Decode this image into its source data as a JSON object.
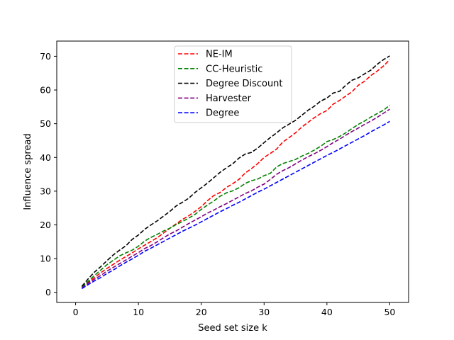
{
  "chart_data": {
    "type": "line",
    "title": "",
    "xlabel": "Seed set size k",
    "ylabel": "Influence spread",
    "xlim": [
      -3,
      53
    ],
    "ylim": [
      -3.0,
      74.5
    ],
    "xticks": [
      0,
      10,
      20,
      30,
      40,
      50
    ],
    "yticks": [
      0,
      10,
      20,
      30,
      40,
      50,
      60,
      70
    ],
    "grid": false,
    "legend_position": "upper-center",
    "line_style": "dashed",
    "x": [
      1,
      2,
      3,
      4,
      5,
      6,
      7,
      8,
      9,
      10,
      11,
      12,
      13,
      14,
      15,
      16,
      17,
      18,
      19,
      20,
      21,
      22,
      23,
      24,
      25,
      26,
      27,
      28,
      29,
      30,
      31,
      32,
      33,
      34,
      35,
      36,
      37,
      38,
      39,
      40,
      41,
      42,
      43,
      44,
      45,
      46,
      47,
      48,
      49,
      50
    ],
    "series": [
      {
        "name": "NE-IM",
        "color": "#ff0000",
        "values": [
          1.5,
          3.0,
          4.4,
          5.8,
          7.1,
          8.3,
          9.5,
          10.6,
          11.7,
          12.9,
          14.0,
          15.1,
          16.2,
          17.6,
          19.0,
          20.3,
          21.6,
          22.7,
          24.0,
          25.4,
          27.2,
          28.7,
          29.6,
          31.1,
          32.2,
          33.5,
          35.4,
          36.7,
          38.2,
          40.0,
          41.2,
          42.5,
          44.6,
          45.9,
          47.3,
          49.0,
          50.4,
          51.8,
          53.0,
          53.9,
          55.8,
          56.9,
          58.2,
          59.5,
          61.4,
          62.6,
          64.3,
          65.6,
          67.1,
          69.0
        ]
      },
      {
        "name": "CC-Heuristic",
        "color": "#008000",
        "values": [
          1.6,
          3.3,
          5.0,
          6.6,
          8.2,
          9.5,
          10.8,
          11.7,
          12.5,
          13.7,
          15.2,
          16.3,
          17.2,
          18.2,
          19.0,
          20.1,
          21.0,
          22.0,
          23.1,
          24.6,
          25.9,
          27.1,
          28.5,
          29.5,
          30.1,
          31.0,
          32.3,
          33.1,
          33.6,
          34.6,
          35.3,
          37.2,
          38.2,
          38.8,
          39.4,
          40.4,
          41.2,
          42.2,
          43.3,
          44.7,
          45.3,
          46.2,
          47.3,
          48.6,
          49.8,
          50.8,
          52.0,
          53.0,
          54.0,
          55.5
        ]
      },
      {
        "name": "Degree Discount",
        "color": "#000000",
        "values": [
          1.8,
          4.0,
          6.0,
          7.6,
          9.4,
          11.1,
          12.5,
          13.8,
          15.7,
          17.0,
          18.7,
          20.0,
          21.2,
          22.6,
          24.0,
          25.6,
          26.7,
          27.9,
          29.6,
          31.0,
          32.4,
          34.0,
          35.6,
          36.9,
          38.1,
          39.8,
          41.0,
          41.5,
          42.8,
          44.4,
          45.9,
          47.3,
          48.8,
          49.9,
          51.0,
          52.5,
          54.0,
          55.2,
          56.7,
          57.6,
          59.1,
          59.6,
          61.4,
          62.9,
          63.6,
          64.8,
          65.9,
          67.6,
          69.0,
          70.1
        ]
      },
      {
        "name": "Harvester",
        "color": "#800080",
        "values": [
          1.3,
          2.7,
          3.9,
          5.0,
          6.3,
          7.4,
          8.5,
          9.6,
          10.7,
          11.8,
          13.0,
          13.9,
          15.0,
          16.2,
          17.3,
          18.2,
          19.3,
          20.4,
          21.4,
          22.4,
          23.5,
          24.4,
          25.4,
          26.3,
          27.3,
          28.3,
          29.3,
          30.1,
          31.2,
          32.1,
          33.5,
          35.0,
          36.1,
          37.0,
          38.1,
          39.2,
          40.2,
          41.1,
          42.1,
          43.2,
          44.4,
          45.4,
          46.6,
          47.7,
          48.7,
          49.8,
          50.8,
          51.9,
          53.1,
          54.3
        ]
      },
      {
        "name": "Degree",
        "color": "#0000ff",
        "values": [
          1.1,
          2.3,
          3.4,
          4.4,
          5.6,
          6.6,
          7.8,
          8.9,
          9.9,
          11.0,
          12.2,
          13.1,
          14.1,
          15.1,
          16.1,
          17.1,
          18.1,
          19.0,
          19.9,
          20.9,
          21.9,
          22.9,
          23.9,
          24.8,
          25.8,
          26.7,
          27.7,
          28.7,
          29.7,
          30.6,
          31.6,
          32.6,
          33.6,
          34.6,
          35.6,
          36.6,
          37.6,
          38.6,
          39.6,
          40.6,
          41.5,
          42.5,
          43.5,
          44.5,
          45.5,
          46.5,
          47.6,
          48.6,
          49.6,
          50.7
        ]
      }
    ]
  }
}
